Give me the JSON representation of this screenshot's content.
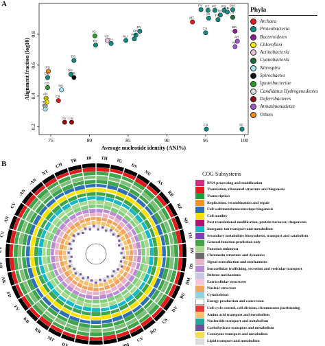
{
  "panel_a_label": "A",
  "panel_b_label": "B",
  "chart_data": [
    {
      "type": "scatter",
      "title": "",
      "xlabel": "Average nucleotide identity (ANI%)",
      "ylabel": "Alignment fraction (log10)",
      "xlim": [
        73.5,
        100.5
      ],
      "ylim": [
        0.15,
        1.0
      ],
      "xticks": [
        "75",
        "80",
        "85",
        "90",
        "95",
        "100"
      ],
      "yticks": [
        "0.2",
        "0.4",
        "0.6",
        "0.8"
      ],
      "legend_title": "Phyla",
      "legend_position": "right",
      "legend": [
        {
          "name": "Archaea",
          "color": "#e41a1c",
          "italic": true
        },
        {
          "name": "Proteobacteria",
          "color": "#0f8f83",
          "italic": true
        },
        {
          "name": "Bacteroidetes",
          "color": "#8e1e8e",
          "italic": true
        },
        {
          "name": "Chloroflexi",
          "color": "#ffee00",
          "italic": true
        },
        {
          "name": "Actinobacteria",
          "color": "#e9c1dc",
          "italic": true
        },
        {
          "name": "Cyanobacteria",
          "color": "#1e6b3c",
          "italic": true
        },
        {
          "name": "Nitrospira",
          "color": "#a6e3ee",
          "italic": true
        },
        {
          "name": "Spirochaetes",
          "color": "#111111",
          "italic": true
        },
        {
          "name": "Ignavibacteriae",
          "color": "#2e9a2e",
          "italic": true
        },
        {
          "name": "Candidatus Hydrogenedentes",
          "color": "#dcdcdc",
          "italic": true
        },
        {
          "name": "Deferribacteres",
          "color": "#8b0f12",
          "italic": true
        },
        {
          "name": "Armatimonadetes",
          "color": "#9c59c8",
          "italic": true
        },
        {
          "name": "Others",
          "color": "#f08a1c",
          "italic": false
        }
      ],
      "points": [
        {
          "label": "MT",
          "x": 93.3,
          "y": 0.88,
          "phylum": "Archaea"
        },
        {
          "label": "FV",
          "x": 94.4,
          "y": 0.96,
          "phylum": "Proteobacteria"
        },
        {
          "label": "KZ",
          "x": 95.3,
          "y": 0.955,
          "phylum": "Proteobacteria"
        },
        {
          "label": "PE",
          "x": 96.2,
          "y": 0.955,
          "phylum": "Proteobacteria"
        },
        {
          "label": "KB",
          "x": 97.4,
          "y": 0.955,
          "phylum": "Proteobacteria"
        },
        {
          "label": "SM",
          "x": 98.5,
          "y": 0.96,
          "phylum": "Proteobacteria"
        },
        {
          "label": "TK",
          "x": 96.9,
          "y": 0.925,
          "phylum": "Proteobacteria"
        },
        {
          "label": "RB",
          "x": 97.8,
          "y": 0.945,
          "phylum": "Proteobacteria"
        },
        {
          "label": "CY",
          "x": 98.5,
          "y": 0.91,
          "phylum": "Cyanobacteria"
        },
        {
          "label": "AS",
          "x": 95.4,
          "y": 0.905,
          "phylum": "Proteobacteria"
        },
        {
          "label": "FS",
          "x": 96.6,
          "y": 0.895,
          "phylum": "Proteobacteria"
        },
        {
          "label": "CS",
          "x": 95.0,
          "y": 0.81,
          "phylum": "Proteobacteria"
        },
        {
          "label": "BR",
          "x": 98.8,
          "y": 0.82,
          "phylum": "Bacteroidetes"
        },
        {
          "label": "AR",
          "x": 99.1,
          "y": 0.755,
          "phylum": "Armatimonadetes"
        },
        {
          "label": "AK",
          "x": 98.8,
          "y": 0.72,
          "phylum": "Armatimonadetes"
        },
        {
          "label": "DV",
          "x": 86.5,
          "y": 0.82,
          "phylum": "Proteobacteria"
        },
        {
          "label": "SH",
          "x": 86.0,
          "y": 0.795,
          "phylum": "Proteobacteria"
        },
        {
          "label": "PM",
          "x": 85.8,
          "y": 0.77,
          "phylum": "Proteobacteria"
        },
        {
          "label": "NU",
          "x": 84.7,
          "y": 0.76,
          "phylum": "Proteobacteria"
        },
        {
          "label": "YP",
          "x": 82.3,
          "y": 0.76,
          "phylum": "Actinobacteria"
        },
        {
          "label": "TH",
          "x": 82.8,
          "y": 0.74,
          "phylum": "Proteobacteria"
        },
        {
          "label": "IG",
          "x": 80.7,
          "y": 0.79,
          "phylum": "Ignavibacteriae"
        },
        {
          "label": "TH",
          "x": 80.8,
          "y": 0.73,
          "phylum": "Proteobacteria"
        },
        {
          "label": "DS",
          "x": 78.0,
          "y": 0.63,
          "phylum": "Proteobacteria"
        },
        {
          "label": "DO",
          "x": 77.6,
          "y": 0.54,
          "phylum": "Proteobacteria"
        },
        {
          "label": "TR",
          "x": 78.0,
          "y": 0.52,
          "phylum": "Spirochaetes"
        },
        {
          "label": "PS",
          "x": 74.7,
          "y": 0.56,
          "phylum": "Others"
        },
        {
          "label": "DE",
          "x": 74.6,
          "y": 0.52,
          "phylum": "Proteobacteria"
        },
        {
          "label": "CO",
          "x": 74.6,
          "y": 0.455,
          "phylum": "Ignavibacteriae"
        },
        {
          "label": "NS",
          "x": 76.4,
          "y": 0.44,
          "phylum": "Nitrospira"
        },
        {
          "label": "AN",
          "x": 74.4,
          "y": 0.385,
          "phylum": "Chloroflexi"
        },
        {
          "label": "AN",
          "x": 74.5,
          "y": 0.36,
          "phylum": "Chloroflexi"
        },
        {
          "label": "TC",
          "x": 74.3,
          "y": 0.335,
          "phylum": "Candidatus Hydrogenedentes"
        },
        {
          "label": "DM",
          "x": 74.3,
          "y": 0.315,
          "phylum": "Nitrospira"
        },
        {
          "label": "CB",
          "x": 76.0,
          "y": 0.37,
          "phylum": "Archaea"
        },
        {
          "label": "CV",
          "x": 76.8,
          "y": 0.23,
          "phylum": "Deferribacteres"
        },
        {
          "label": "CV",
          "x": 77.7,
          "y": 0.23,
          "phylum": "Deferribacteres"
        },
        {
          "label": "FN",
          "x": 95.1,
          "y": 0.185,
          "phylum": "Proteobacteria"
        },
        {
          "label": "SF",
          "x": 99.7,
          "y": 0.185,
          "phylum": "Proteobacteria"
        }
      ]
    },
    {
      "type": "radial-bar",
      "title": "",
      "legend_title": "COG Subsystems",
      "legend_position": "right",
      "ring_labels": [
        "TH",
        "IG",
        "DS",
        "NU",
        "AS",
        "RB",
        "RZ",
        "SH",
        "TH",
        "DV",
        "DS",
        "DM",
        "BU",
        "DV",
        "CS",
        "DO",
        "CV",
        "PM",
        "CV",
        "TK",
        "FV",
        "DV",
        "MT",
        "RB",
        "KB",
        "FV",
        "FD",
        "AK",
        "AR",
        "CV",
        "CV",
        "AN",
        "CV",
        "-AN",
        "-AN",
        "NT",
        "CH",
        "TR",
        "1B"
      ],
      "categories": [
        {
          "name": "RNA processing and modification",
          "color": "#d12e7f"
        },
        {
          "name": "Translation, ribosomal structure and biogenesis",
          "color": "#e31a1c"
        },
        {
          "name": "Transcription",
          "color": "#1f9e3a"
        },
        {
          "name": "Replication, recombination and repair",
          "color": "#f7931e"
        },
        {
          "name": "Cell wall/membrane/envelope biogenesis",
          "color": "#2f6fb5"
        },
        {
          "name": "Cell motility",
          "color": "#ffe100"
        },
        {
          "name": "Post translational modification, protein turnover, chaperones",
          "color": "#b0126d"
        },
        {
          "name": "Inorganic ion transport and metabolism",
          "color": "#17b7c7"
        },
        {
          "name": "Secondary metabolites biosynthesis, transport and catabolism",
          "color": "#7f3fbf"
        },
        {
          "name": "General function prediction only",
          "color": "#3ea54a"
        },
        {
          "name": "Function unknown",
          "color": "#a7d98b"
        },
        {
          "name": "Chromatin structure and dynamics",
          "color": "#6b6b6b"
        },
        {
          "name": "Signal transduction and mechanisms",
          "color": "#e8b3c9"
        },
        {
          "name": "Intracellular trafficking, secretion and vesicular transport",
          "color": "#b98bd3"
        },
        {
          "name": "Defense mechanisms",
          "color": "#c7c7e6"
        },
        {
          "name": "Extracellular structures",
          "color": "#f5c5d9"
        },
        {
          "name": "Nuclear structure",
          "color": "#f2a35c"
        },
        {
          "name": "Cytoskeleton",
          "color": "#8fd3e0"
        },
        {
          "name": "Energy production and conversion",
          "color": "#ffffff"
        },
        {
          "name": "Cell cycle control, cell division, chromosome partitioning",
          "color": "#e53935"
        },
        {
          "name": "Amino acid transport and metabolism",
          "color": "#f6c26b"
        },
        {
          "name": "Nucleotide transport and metabolism",
          "color": "#26a69a"
        },
        {
          "name": "Carbohydrate transport and metabolism",
          "color": "#6f4e9e"
        },
        {
          "name": "Coenzyme transport and metabolism",
          "color": "#f7e04b"
        },
        {
          "name": "Lipid transport and metabolism",
          "color": "#dcdcdc"
        }
      ],
      "rings": [
        {
          "name": "outer",
          "color": "#000000"
        },
        {
          "name": "r1",
          "color": "#e31a1c"
        },
        {
          "name": "r2",
          "color": "#3ea54a"
        },
        {
          "name": "r3",
          "color": "#7fbf7b"
        },
        {
          "name": "r4",
          "color": "#3ea54a"
        },
        {
          "name": "r5",
          "color": "#2f6fb5"
        },
        {
          "name": "r6",
          "color": "#ffe100"
        },
        {
          "name": "r7",
          "color": "#3ea54a"
        },
        {
          "name": "r8",
          "color": "#17b7c7"
        },
        {
          "name": "r9",
          "color": "#a7d98b"
        },
        {
          "name": "r10",
          "color": "#7fcf7f"
        },
        {
          "name": "r11",
          "color": "#b98bd3"
        },
        {
          "name": "r12",
          "color": "#e8b3c9"
        },
        {
          "name": "r13",
          "color": "#f2a35c"
        },
        {
          "name": "r14",
          "color": "#f6c26b"
        },
        {
          "name": "r15",
          "color": "#dcdcdc"
        }
      ]
    }
  ]
}
